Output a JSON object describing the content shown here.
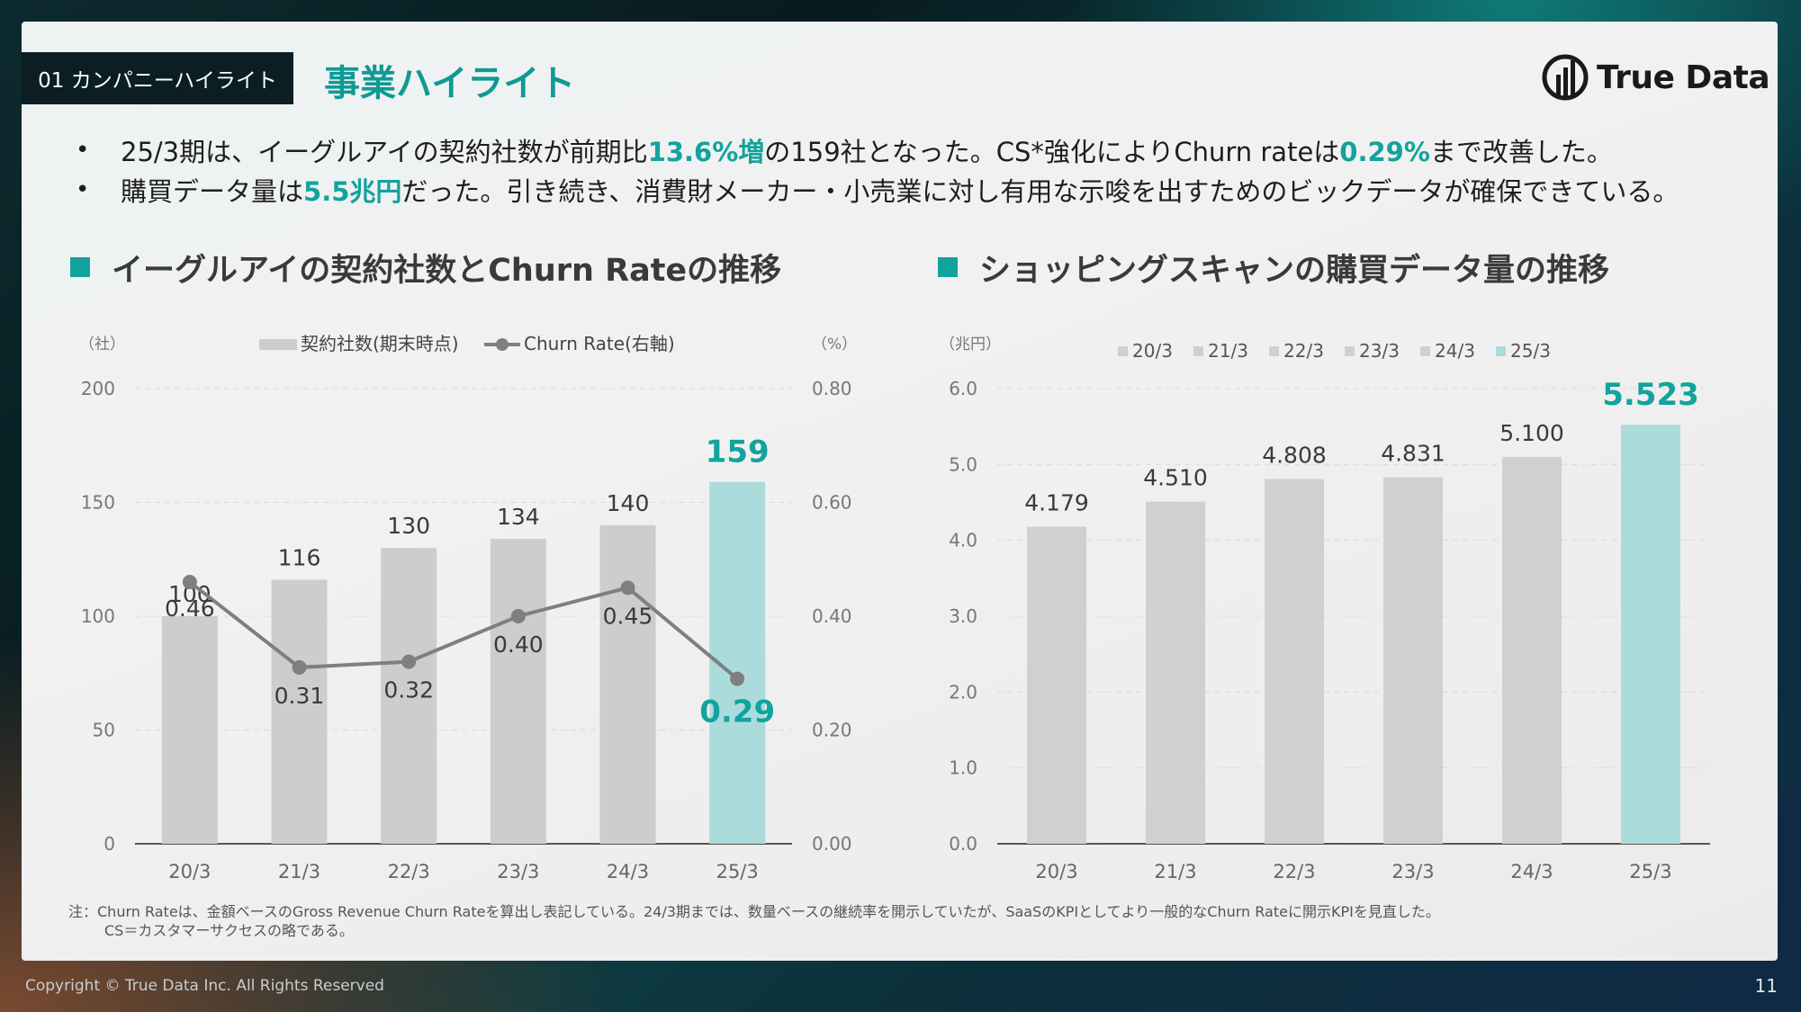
{
  "header": {
    "section_tag": "01 カンパニーハイライト",
    "title": "事業ハイライト",
    "logo_text": "True Data"
  },
  "bullets": [
    {
      "pre": "25/3期は、イーグルアイの契約社数が前期比",
      "hl1": "13.6%増",
      "mid": "の159社となった。CS*強化によりChurn rateは",
      "hl2": "0.29%",
      "post": "まで改善した。"
    },
    {
      "pre": "購買データ量は",
      "hl1": "5.5兆円",
      "mid": "だった。引き続き、消費財メーカー・小売業に対し有用な示唆を出すためのビックデータが確保できている。",
      "hl2": "",
      "post": ""
    }
  ],
  "chart_headings": {
    "left": "イーグルアイの契約社数とChurn Rateの推移",
    "right": "ショッピングスキャンの購買データ量の推移"
  },
  "chart_data": [
    {
      "type": "bar",
      "categories": [
        "20/3",
        "21/3",
        "22/3",
        "23/3",
        "24/3",
        "25/3"
      ],
      "series": [
        {
          "name": "契約社数(期末時点)",
          "type": "bar",
          "axis": "left",
          "values": [
            100,
            116,
            130,
            134,
            140,
            159
          ],
          "value_labels": [
            "100",
            "116",
            "130",
            "134",
            "140",
            "159"
          ]
        },
        {
          "name": "Churn Rate(右軸)",
          "type": "line",
          "axis": "right",
          "values": [
            0.46,
            0.31,
            0.32,
            0.4,
            0.45,
            0.29
          ],
          "value_labels": [
            "0.46",
            "0.31",
            "0.32",
            "0.40",
            "0.45",
            "0.29"
          ]
        }
      ],
      "y_left": {
        "unit": "（社）",
        "ylim": [
          0,
          200
        ],
        "ticks": [
          "0",
          "50",
          "100",
          "150",
          "200"
        ]
      },
      "y_right": {
        "unit": "（%）",
        "ylim": [
          0,
          0.8
        ],
        "ticks": [
          "0.00",
          "0.20",
          "0.40",
          "0.60",
          "0.80"
        ]
      },
      "colors": {
        "bar": "#cdcdcd",
        "bar_highlight": "#abdbdb",
        "line": "#7f7f7f",
        "highlight_text": "#12a39d"
      },
      "grid": true,
      "legend_position": "top"
    },
    {
      "type": "bar",
      "categories": [
        "20/3",
        "21/3",
        "22/3",
        "23/3",
        "24/3",
        "25/3"
      ],
      "series": [
        {
          "name": "",
          "values": [
            4.179,
            4.51,
            4.808,
            4.831,
            5.1,
            5.523
          ],
          "value_labels": [
            "4.179",
            "4.510",
            "4.808",
            "4.831",
            "5.100",
            "5.523"
          ]
        }
      ],
      "legend": [
        "20/3",
        "21/3",
        "22/3",
        "23/3",
        "24/3",
        "25/3"
      ],
      "y": {
        "unit": "（兆円）",
        "ylim": [
          0,
          6.0
        ],
        "ticks": [
          "0.0",
          "1.0",
          "2.0",
          "3.0",
          "4.0",
          "5.0",
          "6.0"
        ]
      },
      "colors": {
        "bar": "#d0d0d0",
        "bar_highlight": "#abdbdb",
        "highlight_text": "#12a39d"
      },
      "grid": true,
      "legend_position": "top"
    }
  ],
  "footnote": {
    "line1": "注：Churn Rateは、金額ベースのGross Revenue Churn Rateを算出し表記している。24/3期までは、数量ベースの継続率を開示していたが、SaaSのKPIとしてより一般的なChurn Rateに開示KPIを見直した。",
    "line2": "CS＝カスタマーサクセスの略である。"
  },
  "copyright": "Copyright © True Data Inc. All Rights Reserved",
  "page_number": "11"
}
